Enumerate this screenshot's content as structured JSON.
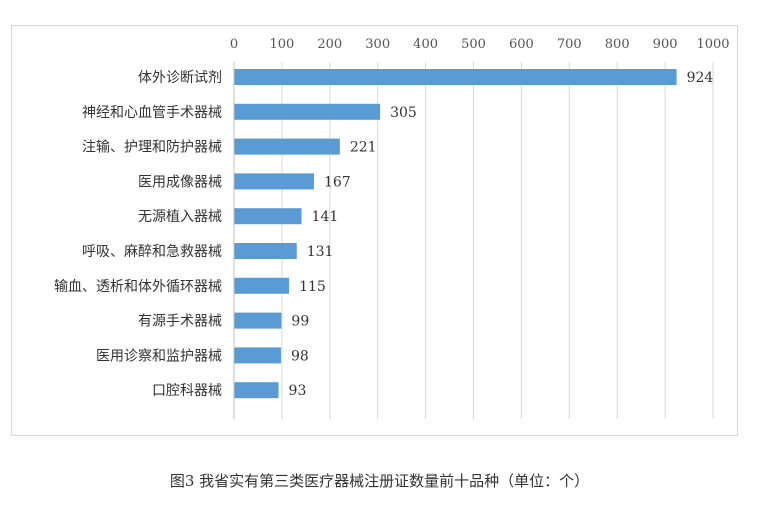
{
  "chart_data": {
    "type": "bar",
    "orientation": "horizontal",
    "categories": [
      "体外诊断试剂",
      "神经和心血管手术器械",
      "注输、护理和防护器械",
      "医用成像器械",
      "无源植入器械",
      "呼吸、麻醉和急救器械",
      "输血、透析和体外循环器械",
      "有源手术器械",
      "医用诊察和监护器械",
      "口腔科器械"
    ],
    "values": [
      924,
      305,
      221,
      167,
      141,
      131,
      115,
      99,
      98,
      93
    ],
    "xlim": [
      0,
      1000
    ],
    "xticks": [
      0,
      100,
      200,
      300,
      400,
      500,
      600,
      700,
      800,
      900,
      1000
    ],
    "axis_position": "top",
    "grid": "vertical",
    "data_labels": true,
    "bar_color": "#5b9bd5",
    "grid_color": "#d9d9d9",
    "title": ""
  },
  "caption": "图3 我省实有第三类医疗器械注册证数量前十品种（单位：个）"
}
